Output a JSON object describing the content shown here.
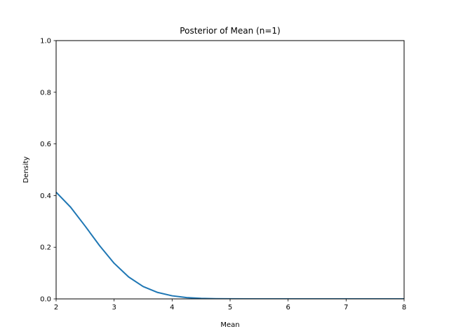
{
  "chart_data": {
    "type": "line",
    "title": "Posterior of Mean (n=1)",
    "xlabel": "Mean",
    "ylabel": "Density",
    "xlim": [
      2,
      8
    ],
    "ylim": [
      0,
      1.0
    ],
    "xticks": [
      2,
      3,
      4,
      5,
      6,
      7,
      8
    ],
    "xtick_labels": [
      "2",
      "3",
      "4",
      "5",
      "6",
      "7",
      "8"
    ],
    "yticks": [
      0,
      0.2,
      0.4,
      0.6,
      0.8,
      1.0
    ],
    "ytick_labels": [
      "0.0",
      "0.2",
      "0.4",
      "0.6",
      "0.8",
      "1.0"
    ],
    "grid": false,
    "legend": "none",
    "series": [
      {
        "color": "#1f77b4",
        "x": [
          2.0,
          2.25,
          2.5,
          2.75,
          3.0,
          3.25,
          3.5,
          3.75,
          4.0,
          4.25,
          4.5,
          4.75,
          5.0,
          5.5,
          6.0,
          6.5,
          7.0,
          7.5,
          8.0
        ],
        "y": [
          0.413,
          0.355,
          0.282,
          0.206,
          0.138,
          0.085,
          0.048,
          0.025,
          0.012,
          0.005,
          0.002,
          0.0008,
          0.0003,
          0.0,
          0.0,
          0.0,
          0.0,
          0.0,
          0.0
        ]
      }
    ]
  }
}
